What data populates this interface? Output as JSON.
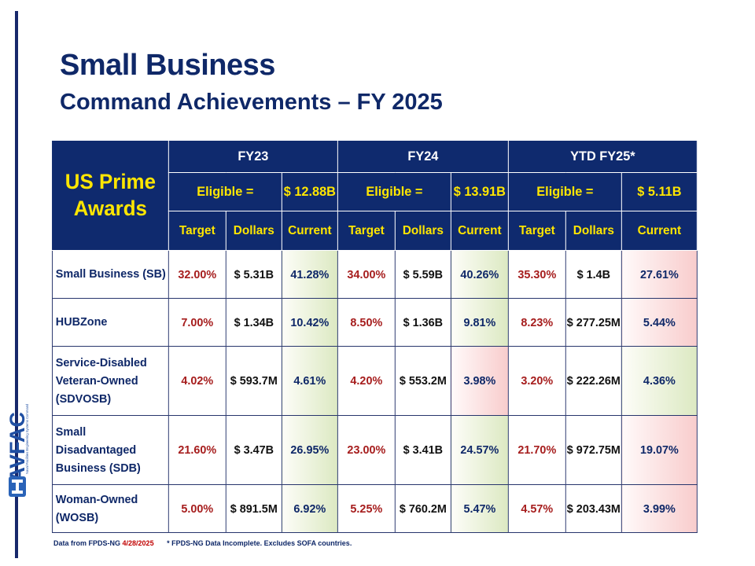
{
  "title": "Small Business",
  "subtitle": "Command Achievements – FY 2025",
  "logo_text": "NAVFAC",
  "logo_subtext": "Naval Facilities Engineering Systems Command",
  "table": {
    "corner_line1": "US Prime",
    "corner_line2": "Awards",
    "periods": [
      {
        "label": "FY23",
        "eligible_label": "Eligible =",
        "eligible_value": "$ 12.88B"
      },
      {
        "label": "FY24",
        "eligible_label": "Eligible =",
        "eligible_value": "$ 13.91B"
      },
      {
        "label": "YTD FY25*",
        "eligible_label": "Eligible =",
        "eligible_value": "$ 5.11B"
      }
    ],
    "subheaders": [
      "Target",
      "Dollars",
      "Current"
    ],
    "rows": [
      {
        "label": "Small Business (SB)",
        "cells": [
          {
            "target": "32.00%",
            "dollars": "$ 5.31B",
            "current": "41.28%",
            "status": "good"
          },
          {
            "target": "34.00%",
            "dollars": "$ 5.59B",
            "current": "40.26%",
            "status": "good"
          },
          {
            "target": "35.30%",
            "dollars": "$ 1.4B",
            "current": "27.61%",
            "status": "bad"
          }
        ]
      },
      {
        "label": "HUBZone",
        "cells": [
          {
            "target": "7.00%",
            "dollars": "$ 1.34B",
            "current": "10.42%",
            "status": "good"
          },
          {
            "target": "8.50%",
            "dollars": "$ 1.36B",
            "current": "9.81%",
            "status": "good"
          },
          {
            "target": "8.23%",
            "dollars": "$ 277.25M",
            "current": "5.44%",
            "status": "bad"
          }
        ]
      },
      {
        "label": "Service-Disabled Veteran-Owned (SDVOSB)",
        "cells": [
          {
            "target": "4.02%",
            "dollars": "$ 593.7M",
            "current": "4.61%",
            "status": "good"
          },
          {
            "target": "4.20%",
            "dollars": "$ 553.2M",
            "current": "3.98%",
            "status": "bad"
          },
          {
            "target": "3.20%",
            "dollars": "$ 222.26M",
            "current": "4.36%",
            "status": "good"
          }
        ]
      },
      {
        "label": "Small Disadvantaged Business (SDB)",
        "cells": [
          {
            "target": "21.60%",
            "dollars": "$ 3.47B",
            "current": "26.95%",
            "status": "good"
          },
          {
            "target": "23.00%",
            "dollars": "$ 3.41B",
            "current": "24.57%",
            "status": "good"
          },
          {
            "target": "21.70%",
            "dollars": "$ 972.75M",
            "current": "19.07%",
            "status": "bad"
          }
        ]
      },
      {
        "label": "Woman-Owned (WOSB)",
        "cells": [
          {
            "target": "5.00%",
            "dollars": "$ 891.5M",
            "current": "6.92%",
            "status": "good"
          },
          {
            "target": "5.25%",
            "dollars": "$ 760.2M",
            "current": "5.47%",
            "status": "good"
          },
          {
            "target": "4.57%",
            "dollars": "$ 203.43M",
            "current": "3.99%",
            "status": "bad"
          }
        ]
      }
    ]
  },
  "colors": {
    "navy": "#0f2a6e",
    "header_text": "#ffe600",
    "target_red": "#a61d1d",
    "met_green": "#dce9c2",
    "missed_pink": "#f8cccc"
  },
  "footnote": {
    "source": "Data from FPDS-NG",
    "date": "4/28/2025",
    "note": "* FPDS-NG Data Incomplete.  Excludes SOFA countries."
  }
}
